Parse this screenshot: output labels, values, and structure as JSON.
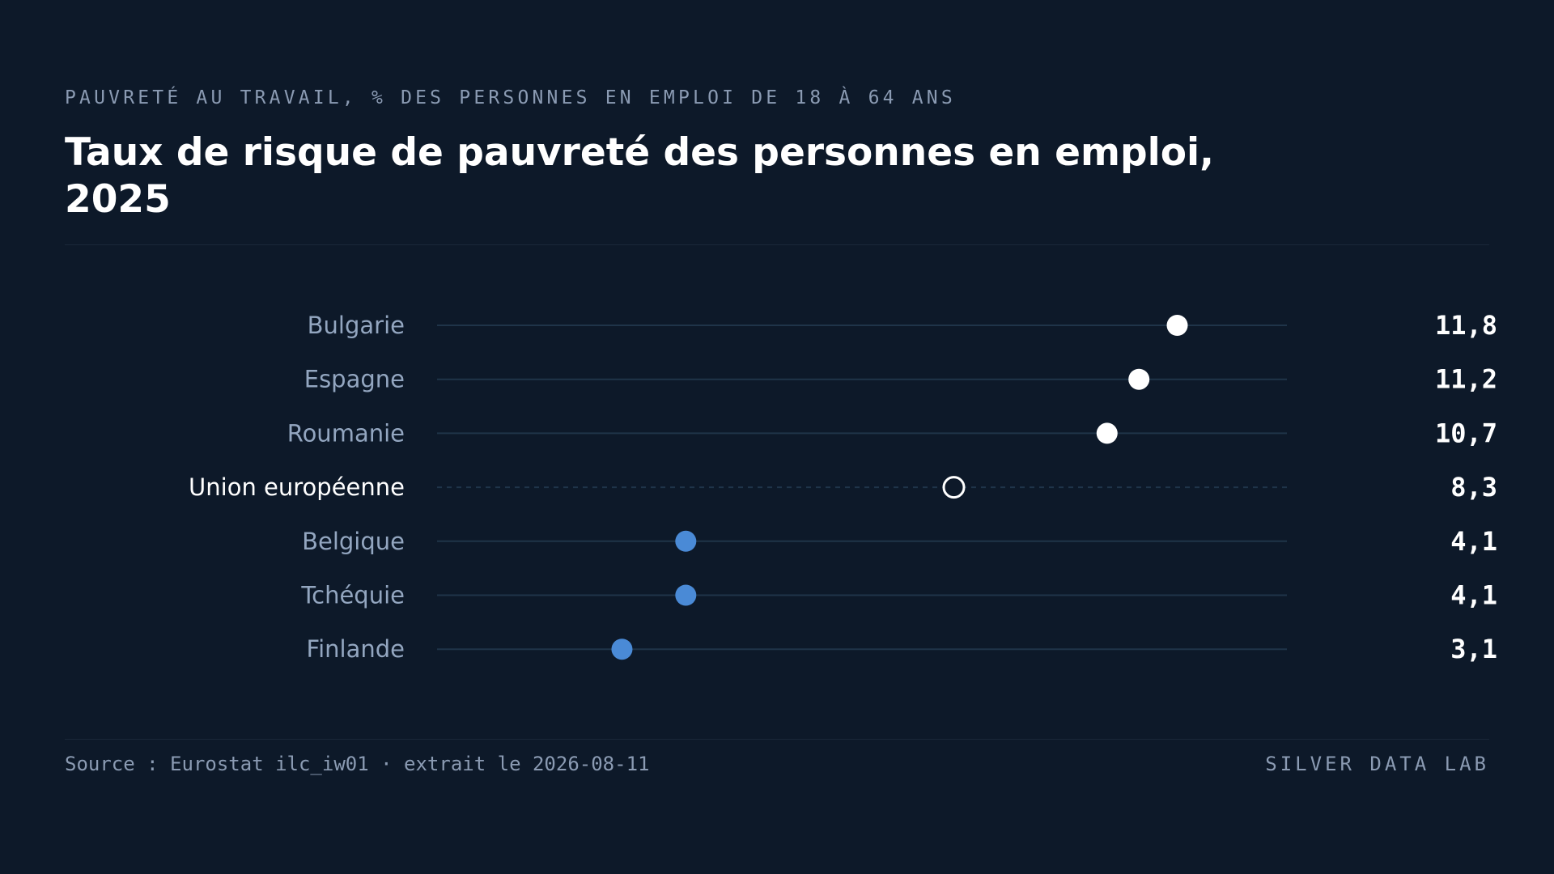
{
  "header": {
    "kicker": "PAUVRETÉ AU TRAVAIL, % DES PERSONNES EN EMPLOI DE 18 À 64 ANS",
    "title": "Taux de risque de pauvreté des personnes en emploi, 2025"
  },
  "chart_data": {
    "type": "dot",
    "title": "Taux de risque de pauvreté des personnes en emploi, 2025",
    "subtitle": "PAUVRETÉ AU TRAVAIL, % DES PERSONNES EN EMPLOI DE 18 À 64 ANS",
    "xlim": [
      0,
      14
    ],
    "grid": false,
    "rows": [
      {
        "label": "Bulgarie",
        "value": 11.8,
        "display": "11,8",
        "group": "high"
      },
      {
        "label": "Espagne",
        "value": 11.2,
        "display": "11,2",
        "group": "high"
      },
      {
        "label": "Roumanie",
        "value": 10.7,
        "display": "10,7",
        "group": "high"
      },
      {
        "label": "Union européenne",
        "value": 8.3,
        "display": "8,3",
        "group": "reference"
      },
      {
        "label": "Belgique",
        "value": 4.1,
        "display": "4,1",
        "group": "low"
      },
      {
        "label": "Tchéquie",
        "value": 4.1,
        "display": "4,1",
        "group": "low"
      },
      {
        "label": "Finlande",
        "value": 3.1,
        "display": "3,1",
        "group": "low"
      }
    ],
    "colors": {
      "high": "#ffffff",
      "low": "#4a8ad6",
      "reference_stroke": "#ffffff",
      "track": "#1f3449",
      "background": "#0d1929"
    }
  },
  "footer": {
    "source": "Source : Eurostat ilc_iw01 · extrait le 2026-08-11",
    "brand": "SILVER DATA LAB"
  }
}
